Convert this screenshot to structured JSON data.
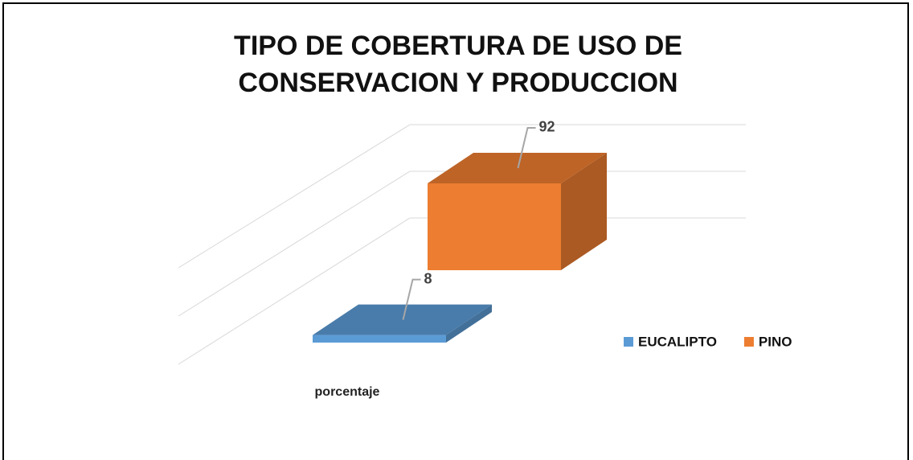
{
  "chart_data": {
    "type": "bar3d",
    "title": "TIPO DE COBERTURA DE USO DE CONSERVACION Y PRODUCCION",
    "categories": [
      "porcentaje"
    ],
    "series": [
      {
        "name": "EUCALIPTO",
        "color": "#5b9bd5",
        "values": [
          8
        ]
      },
      {
        "name": "PINO",
        "color": "#ed7d31",
        "values": [
          92
        ]
      }
    ],
    "legend": "right"
  }
}
